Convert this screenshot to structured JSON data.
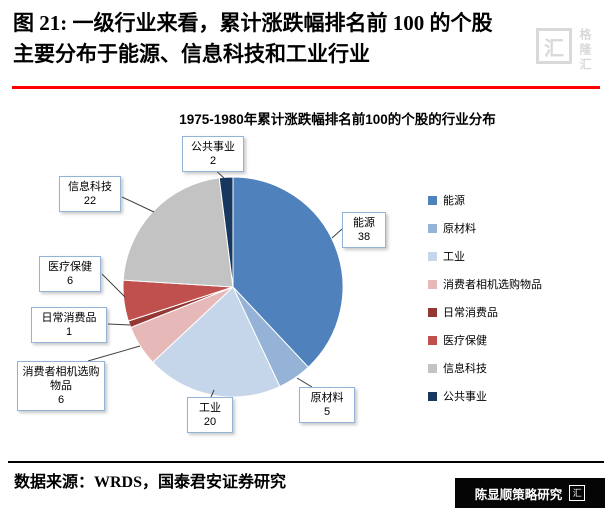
{
  "figure": {
    "title_line1": "图 21:  一级行业来看，累计涨跌幅排名前 100 的个股",
    "title_line2": "主要分布于能源、信息科技和工业行业"
  },
  "chart_data": {
    "type": "pie",
    "title": "1975-1980年累计涨跌幅排名前100的个股的行业分布",
    "total": 100,
    "start_angle_deg": 0,
    "direction": "clockwise",
    "legend_position": "right",
    "slices": [
      {
        "label": "能源",
        "value": 38,
        "color": "#4f81bd"
      },
      {
        "label": "原材料",
        "value": 5,
        "color": "#95b3d7"
      },
      {
        "label": "工业",
        "value": 20,
        "color": "#c5d5ea"
      },
      {
        "label": "消费者相机选购物品",
        "value": 6,
        "color": "#e6b9b8"
      },
      {
        "label": "日常消费品",
        "value": 1,
        "color": "#943634"
      },
      {
        "label": "医疗保健",
        "value": 6,
        "color": "#c0504d"
      },
      {
        "label": "信息科技",
        "value": 22,
        "color": "#c3c3c3"
      },
      {
        "label": "公共事业",
        "value": 2,
        "color": "#17375e"
      }
    ]
  },
  "footer": {
    "source": "数据来源：WRDS，国泰君安证券研究"
  },
  "watermarks": {
    "top_right": "格隆汇",
    "bottom_right": "陈显顺策略研究",
    "logo_char": "汇"
  },
  "style": {
    "title_underline": "#fe0000",
    "callout_border": "#95b3d7"
  }
}
